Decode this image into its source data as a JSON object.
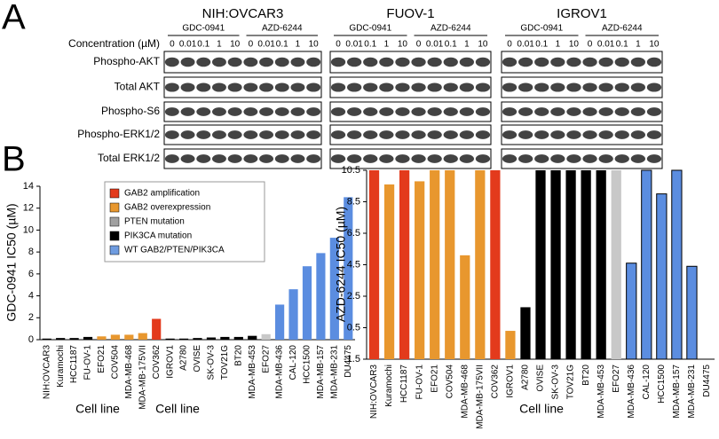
{
  "panel_a": {
    "label": "A",
    "cell_lines": [
      {
        "name": "NIH:OVCAR3",
        "groups": [
          "GDC-0941",
          "AZD-6244"
        ]
      },
      {
        "name": "FUOV-1",
        "groups": [
          "GDC-0941",
          "AZD-6244"
        ]
      },
      {
        "name": "IGROV1",
        "groups": [
          "GDC-0941",
          "AZD-6244"
        ]
      }
    ],
    "concentration_label": "Concentration (µM)",
    "concentrations": [
      "0",
      "0.01",
      "0.1",
      "1",
      "10"
    ],
    "rows": [
      "Phospho-AKT",
      "Total AKT",
      "Phospho-S6",
      "Phospho-ERK1/2",
      "Total ERK1/2"
    ]
  },
  "panel_b": {
    "label": "B"
  },
  "chart_data": [
    {
      "type": "bar",
      "y_label": "GDC-0941 IC50 (µM)",
      "x_label": "Cell line",
      "categories": [
        "NIH:OVCAR3",
        "Kuramochi",
        "HCC1187",
        "FU-OV-1",
        "EFO21",
        "COV504",
        "MDA-MB-468",
        "MDA-MB-175VII",
        "COV362",
        "IGROV1",
        "A2780",
        "OVISE",
        "SK-OV-3",
        "TOV21G",
        "BT20",
        "MDA-MB-453",
        "EFO27",
        "MDA-MB-436",
        "CAL-120",
        "HCC1500",
        "MDA-MB-157",
        "MDA-MB-231",
        "DU4475"
      ],
      "values": [
        0.1,
        0.15,
        0.15,
        0.25,
        0.3,
        0.45,
        0.45,
        0.6,
        1.9,
        0.1,
        0.1,
        0.15,
        0.2,
        0.25,
        0.25,
        0.35,
        0.5,
        3.2,
        4.6,
        6.7,
        7.9,
        9.3,
        13.0
      ],
      "colors": [
        "#000000",
        "#000000",
        "#000000",
        "#000000",
        "#e8972e",
        "#e8972e",
        "#e8972e",
        "#e8972e",
        "#e33a1c",
        "#000000",
        "#000000",
        "#000000",
        "#000000",
        "#000000",
        "#000000",
        "#000000",
        "#c8c8c8",
        "#5b8de0",
        "#5b8de0",
        "#5b8de0",
        "#5b8de0",
        "#5b8de0",
        "#5b8de0"
      ],
      "ylim": [
        0,
        14
      ],
      "yticks": [
        0,
        2,
        4,
        6,
        8,
        10,
        12,
        14
      ],
      "legend": [
        {
          "name": "GAB2 amplification",
          "color": "#e33a1c"
        },
        {
          "name": "GAB2 overexpression",
          "color": "#e8972e"
        },
        {
          "name": "PTEN mutation",
          "color": "#a0a0a0"
        },
        {
          "name": "PIK3CA mutation",
          "color": "#000000"
        },
        {
          "name": "WT GAB2/PTEN/PIK3CA",
          "color": "#6f9ce0"
        }
      ]
    },
    {
      "type": "bar",
      "y_label": "AZD-6244 IC50 (µM)",
      "x_label": "Cell line",
      "categories": [
        "NIH:OVCAR3",
        "Kuramochi",
        "HCC1187",
        "FU-OV-1",
        "EFO21",
        "COV504",
        "MDA-MB-468",
        "MDA-MB-175VII",
        "COV362",
        "IGROV1",
        "A2780",
        "OVISE",
        "SK-OV-3",
        "TOV21G",
        "BT20",
        "MDA-MB-453",
        "EFO27",
        "MDA-MB-436",
        "CAL-120",
        "HCC1500",
        "MDA-MB-157",
        "MDA-MB-231",
        "DU4475"
      ],
      "values": [
        10.5,
        9.6,
        10.5,
        9.8,
        10.5,
        10.5,
        5.1,
        10.5,
        10.5,
        0.3,
        1.8,
        10.5,
        10.5,
        10.5,
        10.5,
        10.5,
        10.5,
        4.6,
        10.5,
        9.0,
        10.5,
        4.4,
        null
      ],
      "colors": [
        "#e33a1c",
        "#e8972e",
        "#e33a1c",
        "#e8972e",
        "#e8972e",
        "#e8972e",
        "#e8972e",
        "#e8972e",
        "#e33a1c",
        "#e8972e",
        "#000000",
        "#000000",
        "#000000",
        "#000000",
        "#000000",
        "#000000",
        "#c8c8c8",
        "#5b8de0",
        "#5b8de0",
        "#5b8de0",
        "#5b8de0",
        "#5b8de0",
        "#5b8de0"
      ],
      "ylim": [
        -1.5,
        10.5
      ],
      "yticks": [
        -1.5,
        0.5,
        2.5,
        4.5,
        6.5,
        8.5,
        10.5
      ]
    }
  ]
}
